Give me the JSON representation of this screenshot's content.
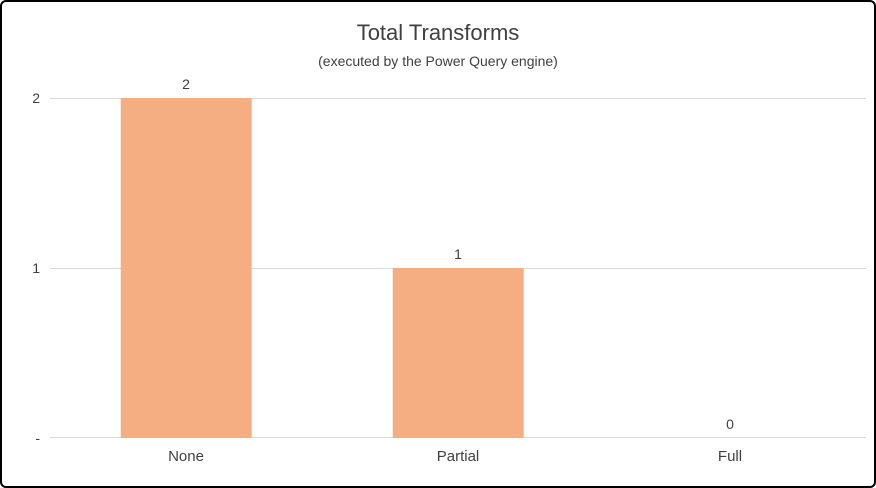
{
  "chart_data": {
    "type": "bar",
    "title": "Total Transforms",
    "subtitle": "(executed by the Power Query engine)",
    "categories": [
      "None",
      "Partial",
      "Full"
    ],
    "values": [
      2,
      1,
      0
    ],
    "data_labels": [
      "2",
      "1",
      "0"
    ],
    "y_ticks": [
      {
        "value": 2,
        "label": "2"
      },
      {
        "value": 1,
        "label": "1"
      },
      {
        "value": 0,
        "label": "-"
      }
    ],
    "ylim": [
      0,
      2
    ],
    "grid": true,
    "legend": "none",
    "bar_color": "#F4AE82",
    "gridline_color": "#D9D9D9",
    "text_color": "#404040",
    "xlabel": "",
    "ylabel": ""
  }
}
